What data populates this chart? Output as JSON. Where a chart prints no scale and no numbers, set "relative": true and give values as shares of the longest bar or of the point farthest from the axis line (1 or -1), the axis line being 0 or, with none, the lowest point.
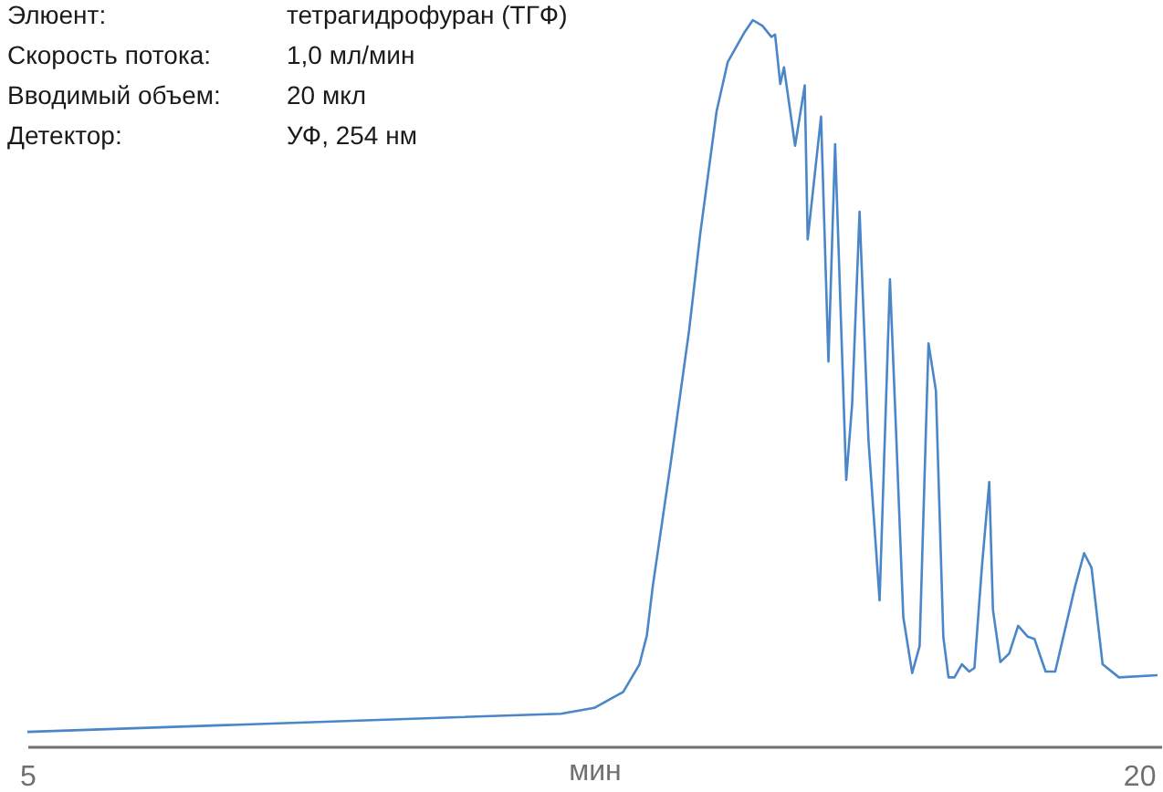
{
  "chart_data": {
    "type": "line",
    "relative": true,
    "xlabel": "мин",
    "annotations": [
      "Элюент:",
      "тетрагидрофуран (ТГФ)",
      "Скорость потока:",
      "1,0 мл/мин",
      "Вводимый объем:",
      "20 мкл",
      "Детектор:",
      "УФ, 254 нм"
    ],
    "xlim": [
      5,
      20.3
    ],
    "xticks": [
      5,
      20
    ],
    "grid": false,
    "marker": "none",
    "line_style": "solid",
    "x": [
      5.0,
      12.2,
      12.65,
      13.04,
      13.26,
      13.36,
      13.44,
      13.68,
      13.93,
      14.08,
      14.3,
      14.45,
      14.67,
      14.79,
      14.92,
      15.04,
      15.09,
      15.16,
      15.21,
      15.36,
      15.49,
      15.53,
      15.71,
      15.81,
      15.9,
      16.05,
      16.13,
      16.23,
      16.35,
      16.5,
      16.64,
      16.72,
      16.82,
      16.94,
      17.04,
      17.16,
      17.26,
      17.36,
      17.43,
      17.51,
      17.61,
      17.71,
      17.78,
      17.88,
      17.98,
      18.03,
      18.13,
      18.25,
      18.37,
      18.5,
      18.59,
      18.74,
      18.87,
      19.14,
      19.26,
      19.36,
      19.51,
      19.73,
      20.25
    ],
    "series": [
      {
        "color": "#4a86c8",
        "values": [
          0.02,
          0.045,
          0.053,
          0.075,
          0.113,
          0.153,
          0.221,
          0.389,
          0.573,
          0.706,
          0.874,
          0.942,
          0.982,
          1.0,
          0.992,
          0.977,
          0.98,
          0.912,
          0.935,
          0.827,
          0.91,
          0.698,
          0.867,
          0.53,
          0.829,
          0.367,
          0.472,
          0.736,
          0.422,
          0.201,
          0.643,
          0.44,
          0.178,
          0.101,
          0.138,
          0.555,
          0.49,
          0.151,
          0.095,
          0.095,
          0.113,
          0.103,
          0.108,
          0.246,
          0.364,
          0.188,
          0.116,
          0.128,
          0.166,
          0.151,
          0.148,
          0.103,
          0.103,
          0.221,
          0.266,
          0.246,
          0.113,
          0.095,
          0.098
        ]
      }
    ]
  }
}
